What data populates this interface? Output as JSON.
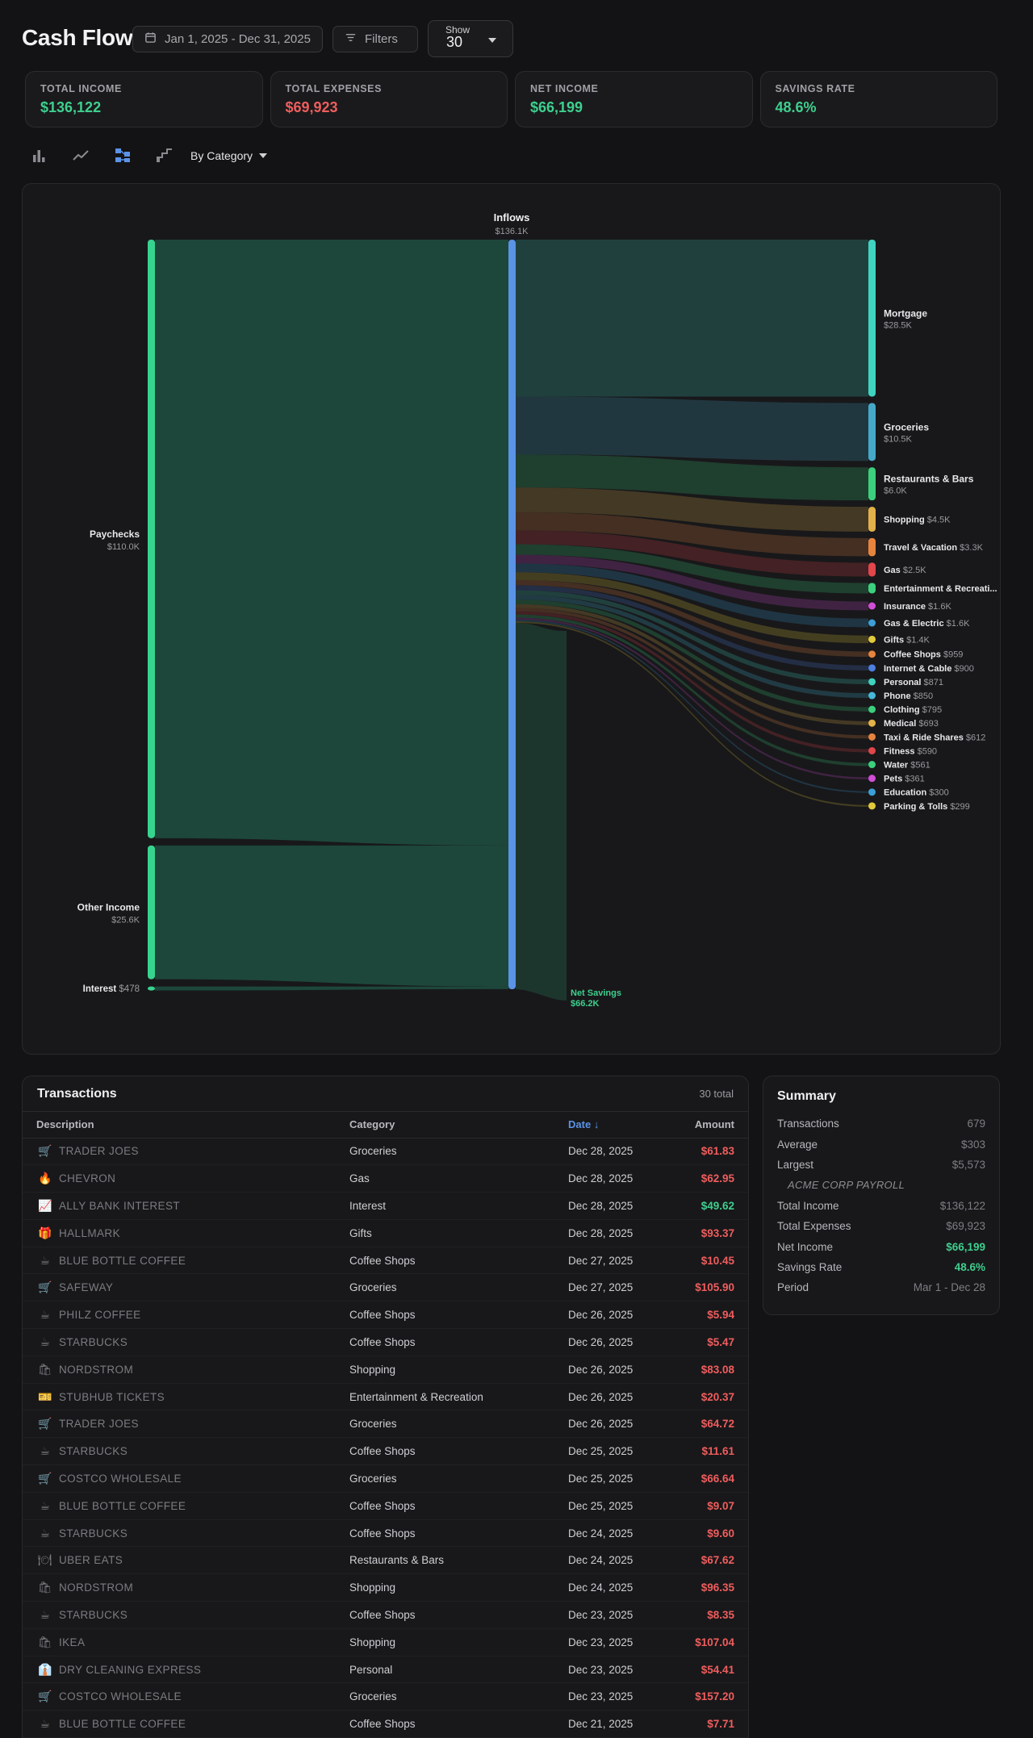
{
  "header": {
    "title": "Cash Flow",
    "date_range": "Jan 1, 2025 - Dec 31, 2025",
    "filters_label": "Filters",
    "show_label": "Show",
    "show_value": "30"
  },
  "stats": [
    {
      "label": "TOTAL INCOME",
      "value": "$136,122",
      "color": "#3ecf8e"
    },
    {
      "label": "TOTAL EXPENSES",
      "value": "$69,923",
      "color": "#ef5d5d"
    },
    {
      "label": "NET INCOME",
      "value": "$66,199",
      "color": "#3ecf8e"
    },
    {
      "label": "SAVINGS RATE",
      "value": "48.6%",
      "color": "#3ecf8e"
    }
  ],
  "toolbar": {
    "icons": [
      "bar-chart-icon",
      "line-chart-icon",
      "sankey-icon",
      "waterfall-icon"
    ],
    "group_by": "By Category"
  },
  "chart_data": {
    "type": "sankey",
    "center": {
      "name": "Inflows",
      "value": "$136.1K",
      "amount": 136.1
    },
    "sources": [
      {
        "name": "Paychecks",
        "value": "$110.0K",
        "amount": 110.0
      },
      {
        "name": "Other Income",
        "value": "$25.6K",
        "amount": 25.6
      },
      {
        "name": "Interest",
        "value": "$478",
        "amount": 0.478
      }
    ],
    "targets": [
      {
        "name": "Mortgage",
        "value": "$28.5K",
        "amount": 28.5,
        "color": "#40d3bf"
      },
      {
        "name": "Groceries",
        "value": "$10.5K",
        "amount": 10.5,
        "color": "#46a9c9"
      },
      {
        "name": "Restaurants & Bars",
        "value": "$6.0K",
        "amount": 6.0,
        "color": "#3ccf7d"
      },
      {
        "name": "Shopping",
        "value": "$4.5K",
        "amount": 4.5,
        "color": "#e2b24a"
      },
      {
        "name": "Travel & Vacation",
        "value": "$3.3K",
        "amount": 3.3,
        "color": "#e5843e"
      },
      {
        "name": "Gas",
        "value": "$2.5K",
        "amount": 2.5,
        "color": "#e0464a"
      },
      {
        "name": "Entertainment & Recreati...",
        "value": "",
        "amount": 1.9,
        "color": "#3ccf7d"
      },
      {
        "name": "Insurance",
        "value": "$1.6K",
        "amount": 1.6,
        "color": "#d14ed6"
      },
      {
        "name": "Gas & Electric",
        "value": "$1.6K",
        "amount": 1.6,
        "color": "#3c9fd8"
      },
      {
        "name": "Gifts",
        "value": "$1.4K",
        "amount": 1.4,
        "color": "#e2c93c"
      },
      {
        "name": "Coffee Shops",
        "value": "$959",
        "amount": 0.959,
        "color": "#e5843e"
      },
      {
        "name": "Internet & Cable",
        "value": "$900",
        "amount": 0.9,
        "color": "#4d7fe0"
      },
      {
        "name": "Personal",
        "value": "$871",
        "amount": 0.871,
        "color": "#40d3bf"
      },
      {
        "name": "Phone",
        "value": "$850",
        "amount": 0.85,
        "color": "#46b9d9"
      },
      {
        "name": "Clothing",
        "value": "$795",
        "amount": 0.795,
        "color": "#3ccf7d"
      },
      {
        "name": "Medical",
        "value": "$693",
        "amount": 0.693,
        "color": "#e2b24a"
      },
      {
        "name": "Taxi & Ride Shares",
        "value": "$612",
        "amount": 0.612,
        "color": "#e5843e"
      },
      {
        "name": "Fitness",
        "value": "$590",
        "amount": 0.59,
        "color": "#e0464a"
      },
      {
        "name": "Water",
        "value": "$561",
        "amount": 0.561,
        "color": "#3ccf7d"
      },
      {
        "name": "Pets",
        "value": "$361",
        "amount": 0.361,
        "color": "#d14ed6"
      },
      {
        "name": "Education",
        "value": "$300",
        "amount": 0.3,
        "color": "#3c9fd8"
      },
      {
        "name": "Parking & Tolls",
        "value": "$299",
        "amount": 0.299,
        "color": "#e2c93c"
      }
    ],
    "savings": {
      "name": "Net Savings",
      "value": "$66.2K",
      "amount": 66.2,
      "color": "#3ecf8e"
    }
  },
  "transactions": {
    "title": "Transactions",
    "total_label": "30 total",
    "columns": {
      "description": "Description",
      "category": "Category",
      "date": "Date",
      "amount": "Amount"
    },
    "rows": [
      {
        "icon": "🛒",
        "icon_name": "cart-icon",
        "description": "TRADER JOES",
        "category": "Groceries",
        "date": "Dec 28, 2025",
        "amount": "$61.83",
        "type": "expense"
      },
      {
        "icon": "🔥",
        "icon_name": "flame-icon",
        "description": "CHEVRON",
        "category": "Gas",
        "date": "Dec 28, 2025",
        "amount": "$62.95",
        "type": "expense"
      },
      {
        "icon": "📈",
        "icon_name": "chart-up-icon",
        "description": "ALLY BANK INTEREST",
        "category": "Interest",
        "date": "Dec 28, 2025",
        "amount": "$49.62",
        "type": "income"
      },
      {
        "icon": "🎁",
        "icon_name": "gift-icon",
        "description": "HALLMARK",
        "category": "Gifts",
        "date": "Dec 28, 2025",
        "amount": "$93.37",
        "type": "expense"
      },
      {
        "icon": "☕",
        "icon_name": "coffee-icon",
        "description": "BLUE BOTTLE COFFEE",
        "category": "Coffee Shops",
        "date": "Dec 27, 2025",
        "amount": "$10.45",
        "type": "expense"
      },
      {
        "icon": "🛒",
        "icon_name": "cart-icon",
        "description": "SAFEWAY",
        "category": "Groceries",
        "date": "Dec 27, 2025",
        "amount": "$105.90",
        "type": "expense"
      },
      {
        "icon": "☕",
        "icon_name": "coffee-icon",
        "description": "PHILZ COFFEE",
        "category": "Coffee Shops",
        "date": "Dec 26, 2025",
        "amount": "$5.94",
        "type": "expense"
      },
      {
        "icon": "☕",
        "icon_name": "coffee-icon",
        "description": "STARBUCKS",
        "category": "Coffee Shops",
        "date": "Dec 26, 2025",
        "amount": "$5.47",
        "type": "expense"
      },
      {
        "icon": "🛍",
        "icon_name": "shopping-bag-icon",
        "description": "NORDSTROM",
        "category": "Shopping",
        "date": "Dec 26, 2025",
        "amount": "$83.08",
        "type": "expense"
      },
      {
        "icon": "🎫",
        "icon_name": "ticket-icon",
        "description": "STUBHUB TICKETS",
        "category": "Entertainment & Recreation",
        "date": "Dec 26, 2025",
        "amount": "$20.37",
        "type": "expense"
      },
      {
        "icon": "🛒",
        "icon_name": "cart-icon",
        "description": "TRADER JOES",
        "category": "Groceries",
        "date": "Dec 26, 2025",
        "amount": "$64.72",
        "type": "expense"
      },
      {
        "icon": "☕",
        "icon_name": "coffee-icon",
        "description": "STARBUCKS",
        "category": "Coffee Shops",
        "date": "Dec 25, 2025",
        "amount": "$11.61",
        "type": "expense"
      },
      {
        "icon": "🛒",
        "icon_name": "cart-icon",
        "description": "COSTCO WHOLESALE",
        "category": "Groceries",
        "date": "Dec 25, 2025",
        "amount": "$66.64",
        "type": "expense"
      },
      {
        "icon": "☕",
        "icon_name": "coffee-icon",
        "description": "BLUE BOTTLE COFFEE",
        "category": "Coffee Shops",
        "date": "Dec 25, 2025",
        "amount": "$9.07",
        "type": "expense"
      },
      {
        "icon": "☕",
        "icon_name": "coffee-icon",
        "description": "STARBUCKS",
        "category": "Coffee Shops",
        "date": "Dec 24, 2025",
        "amount": "$9.60",
        "type": "expense"
      },
      {
        "icon": "🍽",
        "icon_name": "plate-icon",
        "description": "UBER EATS",
        "category": "Restaurants & Bars",
        "date": "Dec 24, 2025",
        "amount": "$67.62",
        "type": "expense"
      },
      {
        "icon": "🛍",
        "icon_name": "shopping-bag-icon",
        "description": "NORDSTROM",
        "category": "Shopping",
        "date": "Dec 24, 2025",
        "amount": "$96.35",
        "type": "expense"
      },
      {
        "icon": "☕",
        "icon_name": "coffee-icon",
        "description": "STARBUCKS",
        "category": "Coffee Shops",
        "date": "Dec 23, 2025",
        "amount": "$8.35",
        "type": "expense"
      },
      {
        "icon": "🛍",
        "icon_name": "shopping-bag-icon",
        "description": "IKEA",
        "category": "Shopping",
        "date": "Dec 23, 2025",
        "amount": "$107.04",
        "type": "expense"
      },
      {
        "icon": "👔",
        "icon_name": "person-icon",
        "description": "DRY CLEANING EXPRESS",
        "category": "Personal",
        "date": "Dec 23, 2025",
        "amount": "$54.41",
        "type": "expense"
      },
      {
        "icon": "🛒",
        "icon_name": "cart-icon",
        "description": "COSTCO WHOLESALE",
        "category": "Groceries",
        "date": "Dec 23, 2025",
        "amount": "$157.20",
        "type": "expense"
      },
      {
        "icon": "☕",
        "icon_name": "coffee-icon",
        "description": "BLUE BOTTLE COFFEE",
        "category": "Coffee Shops",
        "date": "Dec 21, 2025",
        "amount": "$7.71",
        "type": "expense"
      }
    ]
  },
  "summary": {
    "title": "Summary",
    "transactions_label": "Transactions",
    "transactions_value": "679",
    "average_label": "Average",
    "average_value": "$303",
    "largest_label": "Largest",
    "largest_value": "$5,573",
    "largest_desc": "ACME CORP PAYROLL",
    "total_income_label": "Total Income",
    "total_income_value": "$136,122",
    "total_expenses_label": "Total Expenses",
    "total_expenses_value": "$69,923",
    "net_income_label": "Net Income",
    "net_income_value": "$66,199",
    "savings_rate_label": "Savings Rate",
    "savings_rate_value": "48.6%",
    "period_label": "Period",
    "period_value": "Mar 1 - Dec 28"
  },
  "colors": {
    "income": "#3ecf8e",
    "expense": "#ef5d5d",
    "accent": "#5b93e6",
    "source_node": "#36d48f",
    "center_node": "#5b93e6"
  }
}
